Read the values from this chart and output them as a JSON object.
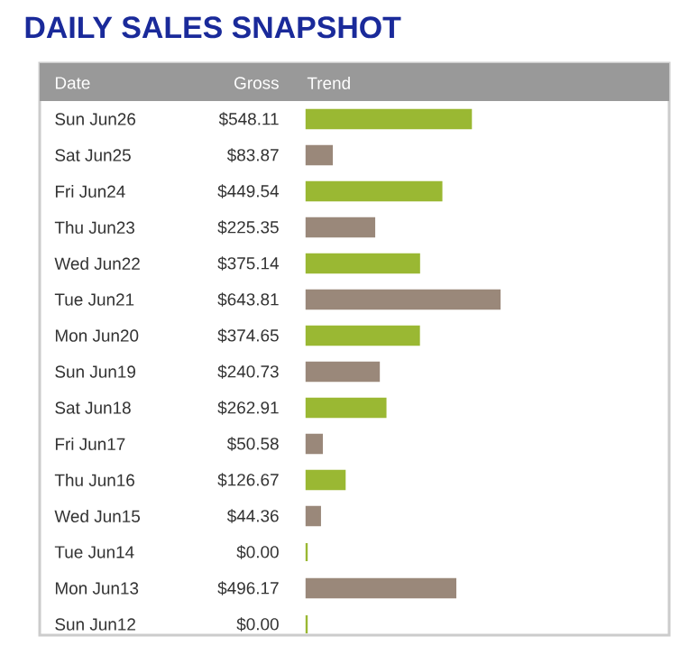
{
  "chart_data": {
    "type": "bar",
    "orientation": "horizontal",
    "title": "DAILY SALES SNAPSHOT",
    "annotations": [
      "Date",
      "Gross",
      "Trend"
    ],
    "categories": [
      "Sun Jun26",
      "Sat Jun25",
      "Fri Jun24",
      "Thu Jun23",
      "Wed Jun22",
      "Tue Jun21",
      "Mon Jun20",
      "Sun Jun19",
      "Sat Jun18",
      "Fri Jun17",
      "Thu Jun16",
      "Wed Jun15",
      "Tue Jun14",
      "Mon Jun13",
      "Sun Jun12"
    ],
    "values": [
      548.11,
      83.87,
      449.54,
      225.35,
      375.14,
      643.81,
      374.65,
      240.73,
      262.91,
      50.58,
      126.67,
      44.36,
      0.0,
      496.17,
      0.0
    ],
    "value_labels": [
      "$548.11",
      "$83.87",
      "$449.54",
      "$225.35",
      "$375.14",
      "$643.81",
      "$374.65",
      "$240.73",
      "$262.91",
      "$50.58",
      "$126.67",
      "$44.36",
      "$0.00",
      "$496.17",
      "$0.00"
    ],
    "colors": [
      "#9ab833",
      "#9a887a",
      "#9ab833",
      "#9a887a",
      "#9ab833",
      "#9a887a",
      "#9ab833",
      "#9a887a",
      "#9ab833",
      "#9a887a",
      "#9ab833",
      "#9a887a",
      "#9ab833",
      "#9a887a",
      "#9ab833"
    ]
  }
}
